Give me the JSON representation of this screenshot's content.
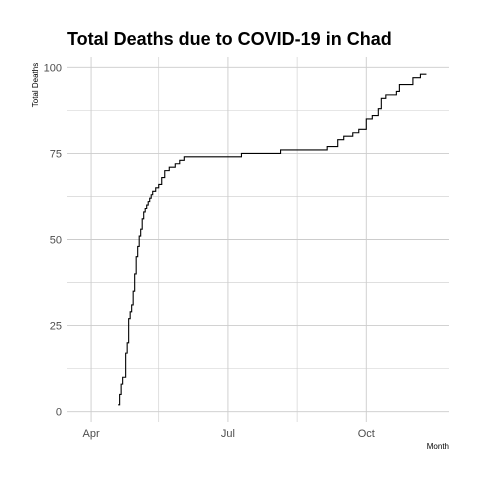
{
  "chart_data": {
    "type": "line",
    "title": "Total Deaths due to COVID-19 in Chad",
    "xlabel": "Month",
    "ylabel": "Total Deaths",
    "x_ticks": [
      "Apr",
      "Jul",
      "Oct"
    ],
    "y_ticks": [
      0,
      25,
      50,
      75,
      100
    ],
    "xlim": [
      "2020-03-16",
      "2020-11-25"
    ],
    "ylim": [
      -3,
      103
    ],
    "grid": true,
    "line_color": "#000000",
    "grid_color": "#cccccc",
    "series": [
      {
        "x": [
          "2020-04-19",
          "2020-04-20",
          "2020-04-21",
          "2020-04-22",
          "2020-04-24",
          "2020-04-25",
          "2020-04-26",
          "2020-04-27",
          "2020-04-28",
          "2020-04-29",
          "2020-04-30",
          "2020-05-01",
          "2020-05-02",
          "2020-05-03",
          "2020-05-04",
          "2020-05-05",
          "2020-05-06",
          "2020-05-07",
          "2020-05-08",
          "2020-05-09",
          "2020-05-10",
          "2020-05-11",
          "2020-05-12",
          "2020-05-14",
          "2020-05-16",
          "2020-05-18",
          "2020-05-20",
          "2020-05-23",
          "2020-05-27",
          "2020-05-30",
          "2020-06-02",
          "2020-06-05",
          "2020-06-08",
          "2020-06-12",
          "2020-06-20",
          "2020-07-10",
          "2020-08-05",
          "2020-09-05",
          "2020-09-12",
          "2020-09-16",
          "2020-09-22",
          "2020-09-26",
          "2020-10-01",
          "2020-10-05",
          "2020-10-09",
          "2020-10-11",
          "2020-10-14",
          "2020-10-21",
          "2020-10-23",
          "2020-11-01",
          "2020-11-06"
        ],
        "y": [
          2,
          5,
          8,
          10,
          17,
          20,
          27,
          29,
          31,
          35,
          40,
          45,
          48,
          51,
          53,
          56,
          58,
          59,
          60,
          61,
          62,
          63,
          64,
          65,
          66,
          68,
          70,
          71,
          72,
          73,
          74,
          74,
          74,
          74,
          74,
          75,
          76,
          77,
          79,
          80,
          81,
          82,
          85,
          86,
          88,
          91,
          92,
          93,
          95,
          97,
          98
        ]
      }
    ]
  }
}
